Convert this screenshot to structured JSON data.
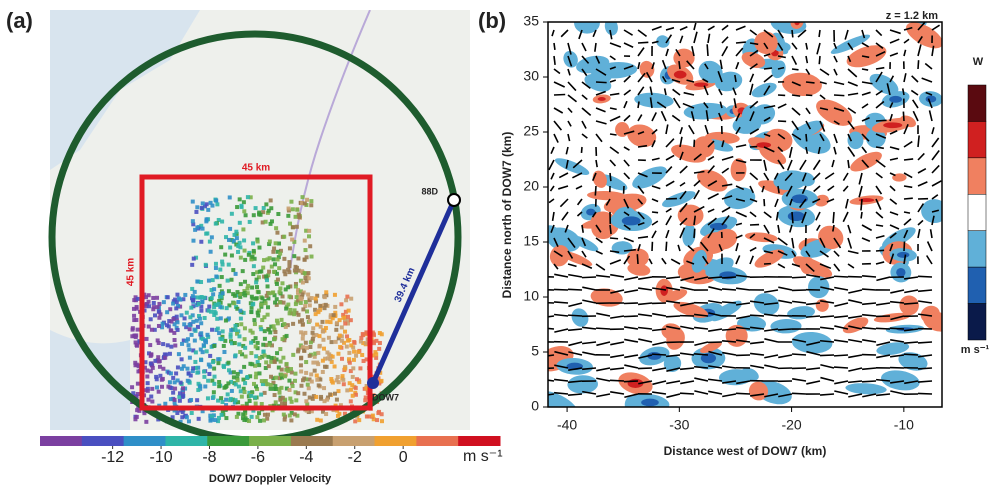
{
  "chart_data": [
    {
      "type": "map",
      "panel_label": "(a)",
      "annotations": {
        "box_top": "45 km",
        "box_side": "45 km",
        "range": "39.4 km",
        "radar_88d": "88D",
        "radar_dow7": "DOW7"
      },
      "colorbar": {
        "label": "DOW7 Doppler Velocity",
        "unit": "m s⁻¹",
        "clim": [
          -15,
          4
        ],
        "ticks": [
          -12,
          -10,
          -8,
          -6,
          -4,
          -2,
          0
        ],
        "colors": [
          "#7b3fa0",
          "#4a4fc0",
          "#2f8fc8",
          "#2fb5a8",
          "#3a9a3a",
          "#7ab04a",
          "#9a7a50",
          "#c8a070",
          "#f0a030",
          "#e87050",
          "#d01020"
        ]
      }
    },
    {
      "type": "field",
      "panel_label": "(b)",
      "annotation": "z = 1.2 km",
      "x_label": "Distance west of DOW7 (km)",
      "y_label": "Distance north of DOW7 (km)",
      "xlim": [
        -41.7,
        -6.6
      ],
      "xticks": [
        -40,
        -30,
        -20,
        -10
      ],
      "ylim": [
        0,
        35
      ],
      "yticks": [
        0,
        5,
        10,
        15,
        20,
        25,
        30,
        35
      ],
      "colorbar": {
        "label": "W",
        "unit": "m s⁻¹",
        "colors": [
          "#5a0a10",
          "#d02020",
          "#f08060",
          "#ffffff",
          "#60b0d8",
          "#2060b0",
          "#0a1a4a"
        ]
      }
    }
  ]
}
